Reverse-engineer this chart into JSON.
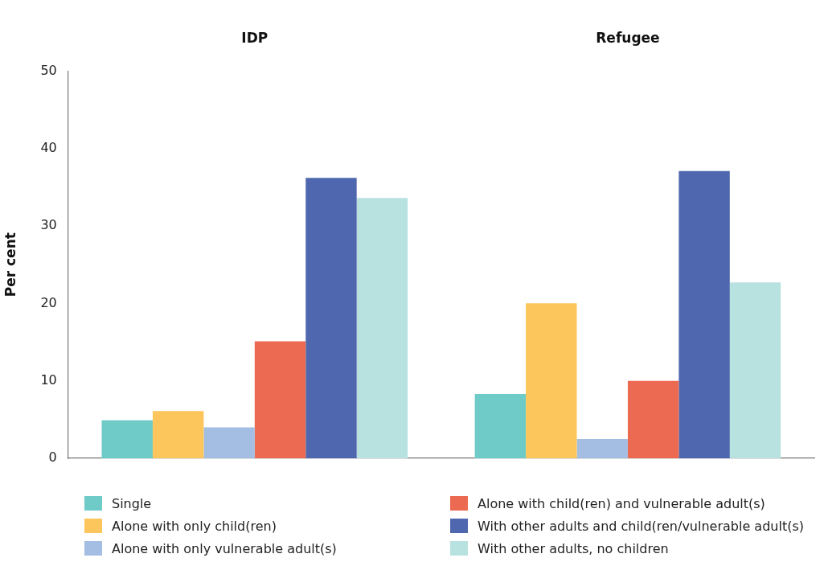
{
  "chart_data": {
    "type": "bar",
    "ylabel": "Per cent",
    "categories": [
      "IDP",
      "Refugee"
    ],
    "series": [
      {
        "name": "Single",
        "color": "#6fcbc7",
        "values": [
          4.9,
          8.3
        ]
      },
      {
        "name": "Alone with only child(ren)",
        "color": "#fdc65c",
        "values": [
          6.1,
          20.0
        ]
      },
      {
        "name": "Alone with only vulnerable adult(s)",
        "color": "#a3bde3",
        "values": [
          4.0,
          2.5
        ]
      },
      {
        "name": "Alone with child(ren) and vulnerable adult(s)",
        "color": "#ec6a52",
        "values": [
          15.1,
          10.0
        ]
      },
      {
        "name": "With other adults and child(ren/vulnerable adult(s)",
        "color": "#4f67ae",
        "values": [
          36.2,
          37.1
        ]
      },
      {
        "name": "With other adults, no children",
        "color": "#b8e2e0",
        "values": [
          33.6,
          22.7
        ]
      }
    ],
    "ylim": [
      0,
      50
    ],
    "yticks": [
      0,
      10,
      20,
      30,
      40,
      50
    ],
    "grid": false,
    "legend": "bottom"
  }
}
